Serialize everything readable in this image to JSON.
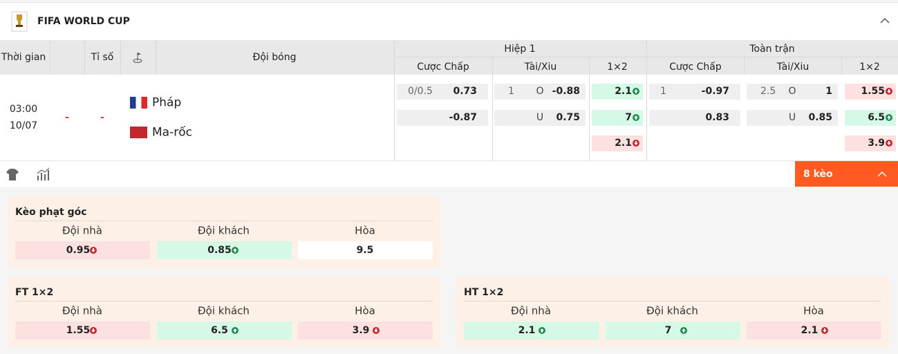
{
  "league": "FIFA WORLD CUP",
  "header": {
    "time": "Thời gian",
    "score": "Tỉ số",
    "team": "Đội bóng",
    "h1": "Hiệp 1",
    "ft": "Toàn trận",
    "h1_cols": [
      "Cược Chấp",
      "Tài/Xiu",
      "1×2"
    ],
    "ft_cols": [
      "Cược Chấp",
      "Tài/Xiu",
      "1×2"
    ]
  },
  "match": {
    "time": "03:00",
    "date": "10/07",
    "score_home": "-",
    "score_away": "-",
    "teams": [
      "Pháp",
      "Ma-rốc"
    ],
    "h1": {
      "handicap": [
        {
          "line": "0/0.5",
          "odds": "0.73"
        },
        {
          "odds": "-0.87"
        }
      ],
      "over_under": [
        {
          "line": "1",
          "side": "O",
          "odds": "-0.88"
        },
        {
          "side": "U",
          "odds": "0.75"
        }
      ],
      "x12": [
        {
          "value": "2.1",
          "trend": "up"
        },
        {
          "value": "7",
          "trend": "up"
        },
        {
          "value": "2.1",
          "trend": "down"
        }
      ]
    },
    "ft": {
      "handicap": [
        {
          "line": "1",
          "odds": "-0.97"
        },
        {
          "odds": "0.83"
        }
      ],
      "over_under": [
        {
          "line": "2.5",
          "side": "O",
          "odds": "1"
        },
        {
          "side": "U",
          "odds": "0.85"
        }
      ],
      "x12": [
        {
          "value": "1.55",
          "trend": "down"
        },
        {
          "value": "6.5",
          "trend": "up"
        },
        {
          "value": "3.9",
          "trend": "down"
        }
      ]
    }
  },
  "more_button": "8 kèo",
  "panels": [
    {
      "title": "Kèo phạt góc",
      "cols": [
        "Đội nhà",
        "Đội khách",
        "Hòa"
      ],
      "odds": [
        {
          "value": "0.95",
          "trend": "down"
        },
        {
          "value": "0.85",
          "trend": "up"
        },
        {
          "value": "9.5"
        }
      ]
    },
    {
      "title": "FT 1×2",
      "cols": [
        "Đội nhà",
        "Đội khách",
        "Hòa"
      ],
      "odds": [
        {
          "value": "1.55",
          "trend": "down"
        },
        {
          "value": "6.5",
          "trend": "up"
        },
        {
          "value": "3.9",
          "trend": "down"
        }
      ]
    },
    {
      "title": "HT 1×2",
      "cols": [
        "Đội nhà",
        "Đội khách",
        "Hòa"
      ],
      "odds": [
        {
          "value": "2.1",
          "trend": "up"
        },
        {
          "value": "7",
          "trend": "up"
        },
        {
          "value": "2.1",
          "trend": "down"
        }
      ]
    }
  ]
}
